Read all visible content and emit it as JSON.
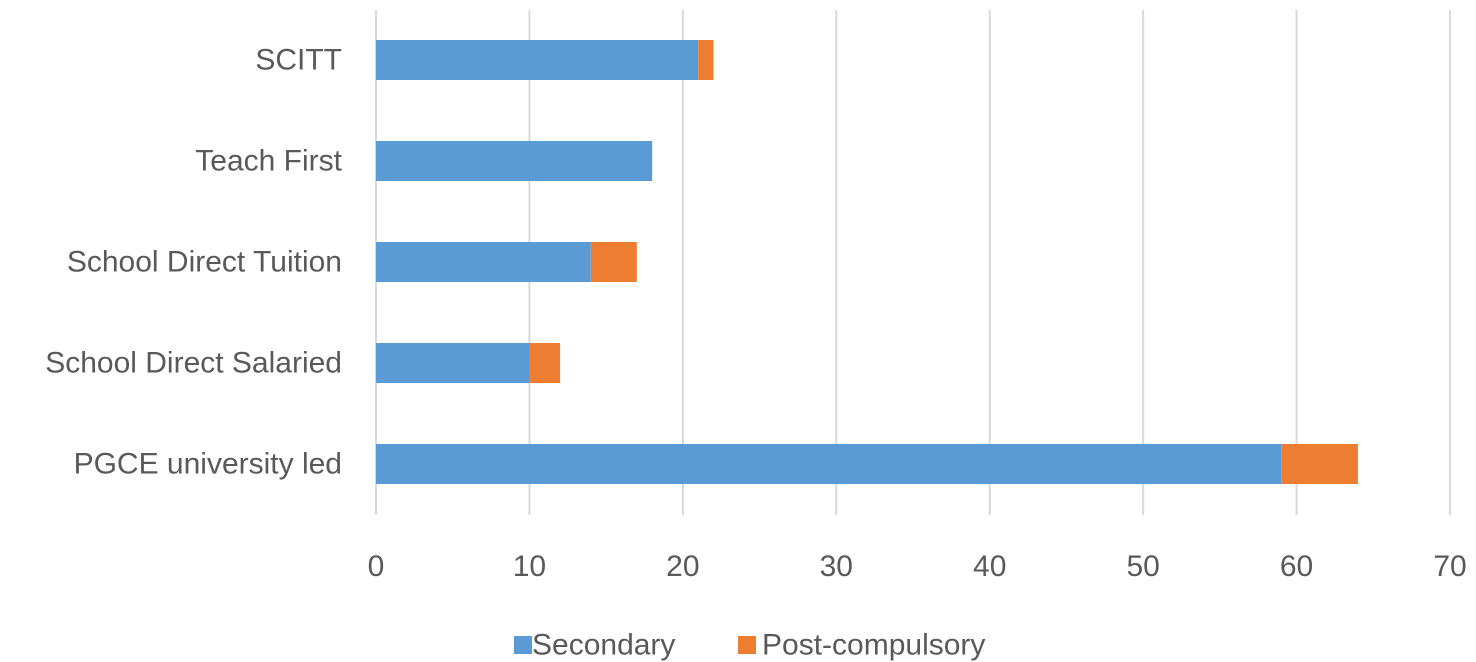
{
  "chart_data": {
    "type": "bar",
    "orientation": "horizontal",
    "stacked": true,
    "categories": [
      "SCITT",
      "Teach First",
      "School Direct Tuition",
      "School Direct Salaried",
      "PGCE university led"
    ],
    "series": [
      {
        "name": "Secondary",
        "values": [
          21,
          18,
          14,
          10,
          59
        ],
        "color": "#5B9BD5"
      },
      {
        "name": "Post-compulsory",
        "values": [
          1,
          0,
          3,
          2,
          5
        ],
        "color": "#ED7D31"
      }
    ],
    "xlim": [
      0,
      70
    ],
    "xticks": [
      0,
      10,
      20,
      30,
      40,
      50,
      60,
      70
    ],
    "grid": true,
    "grid_axis": "vertical",
    "legend_position": "bottom",
    "title": "",
    "xlabel": "",
    "ylabel": ""
  }
}
